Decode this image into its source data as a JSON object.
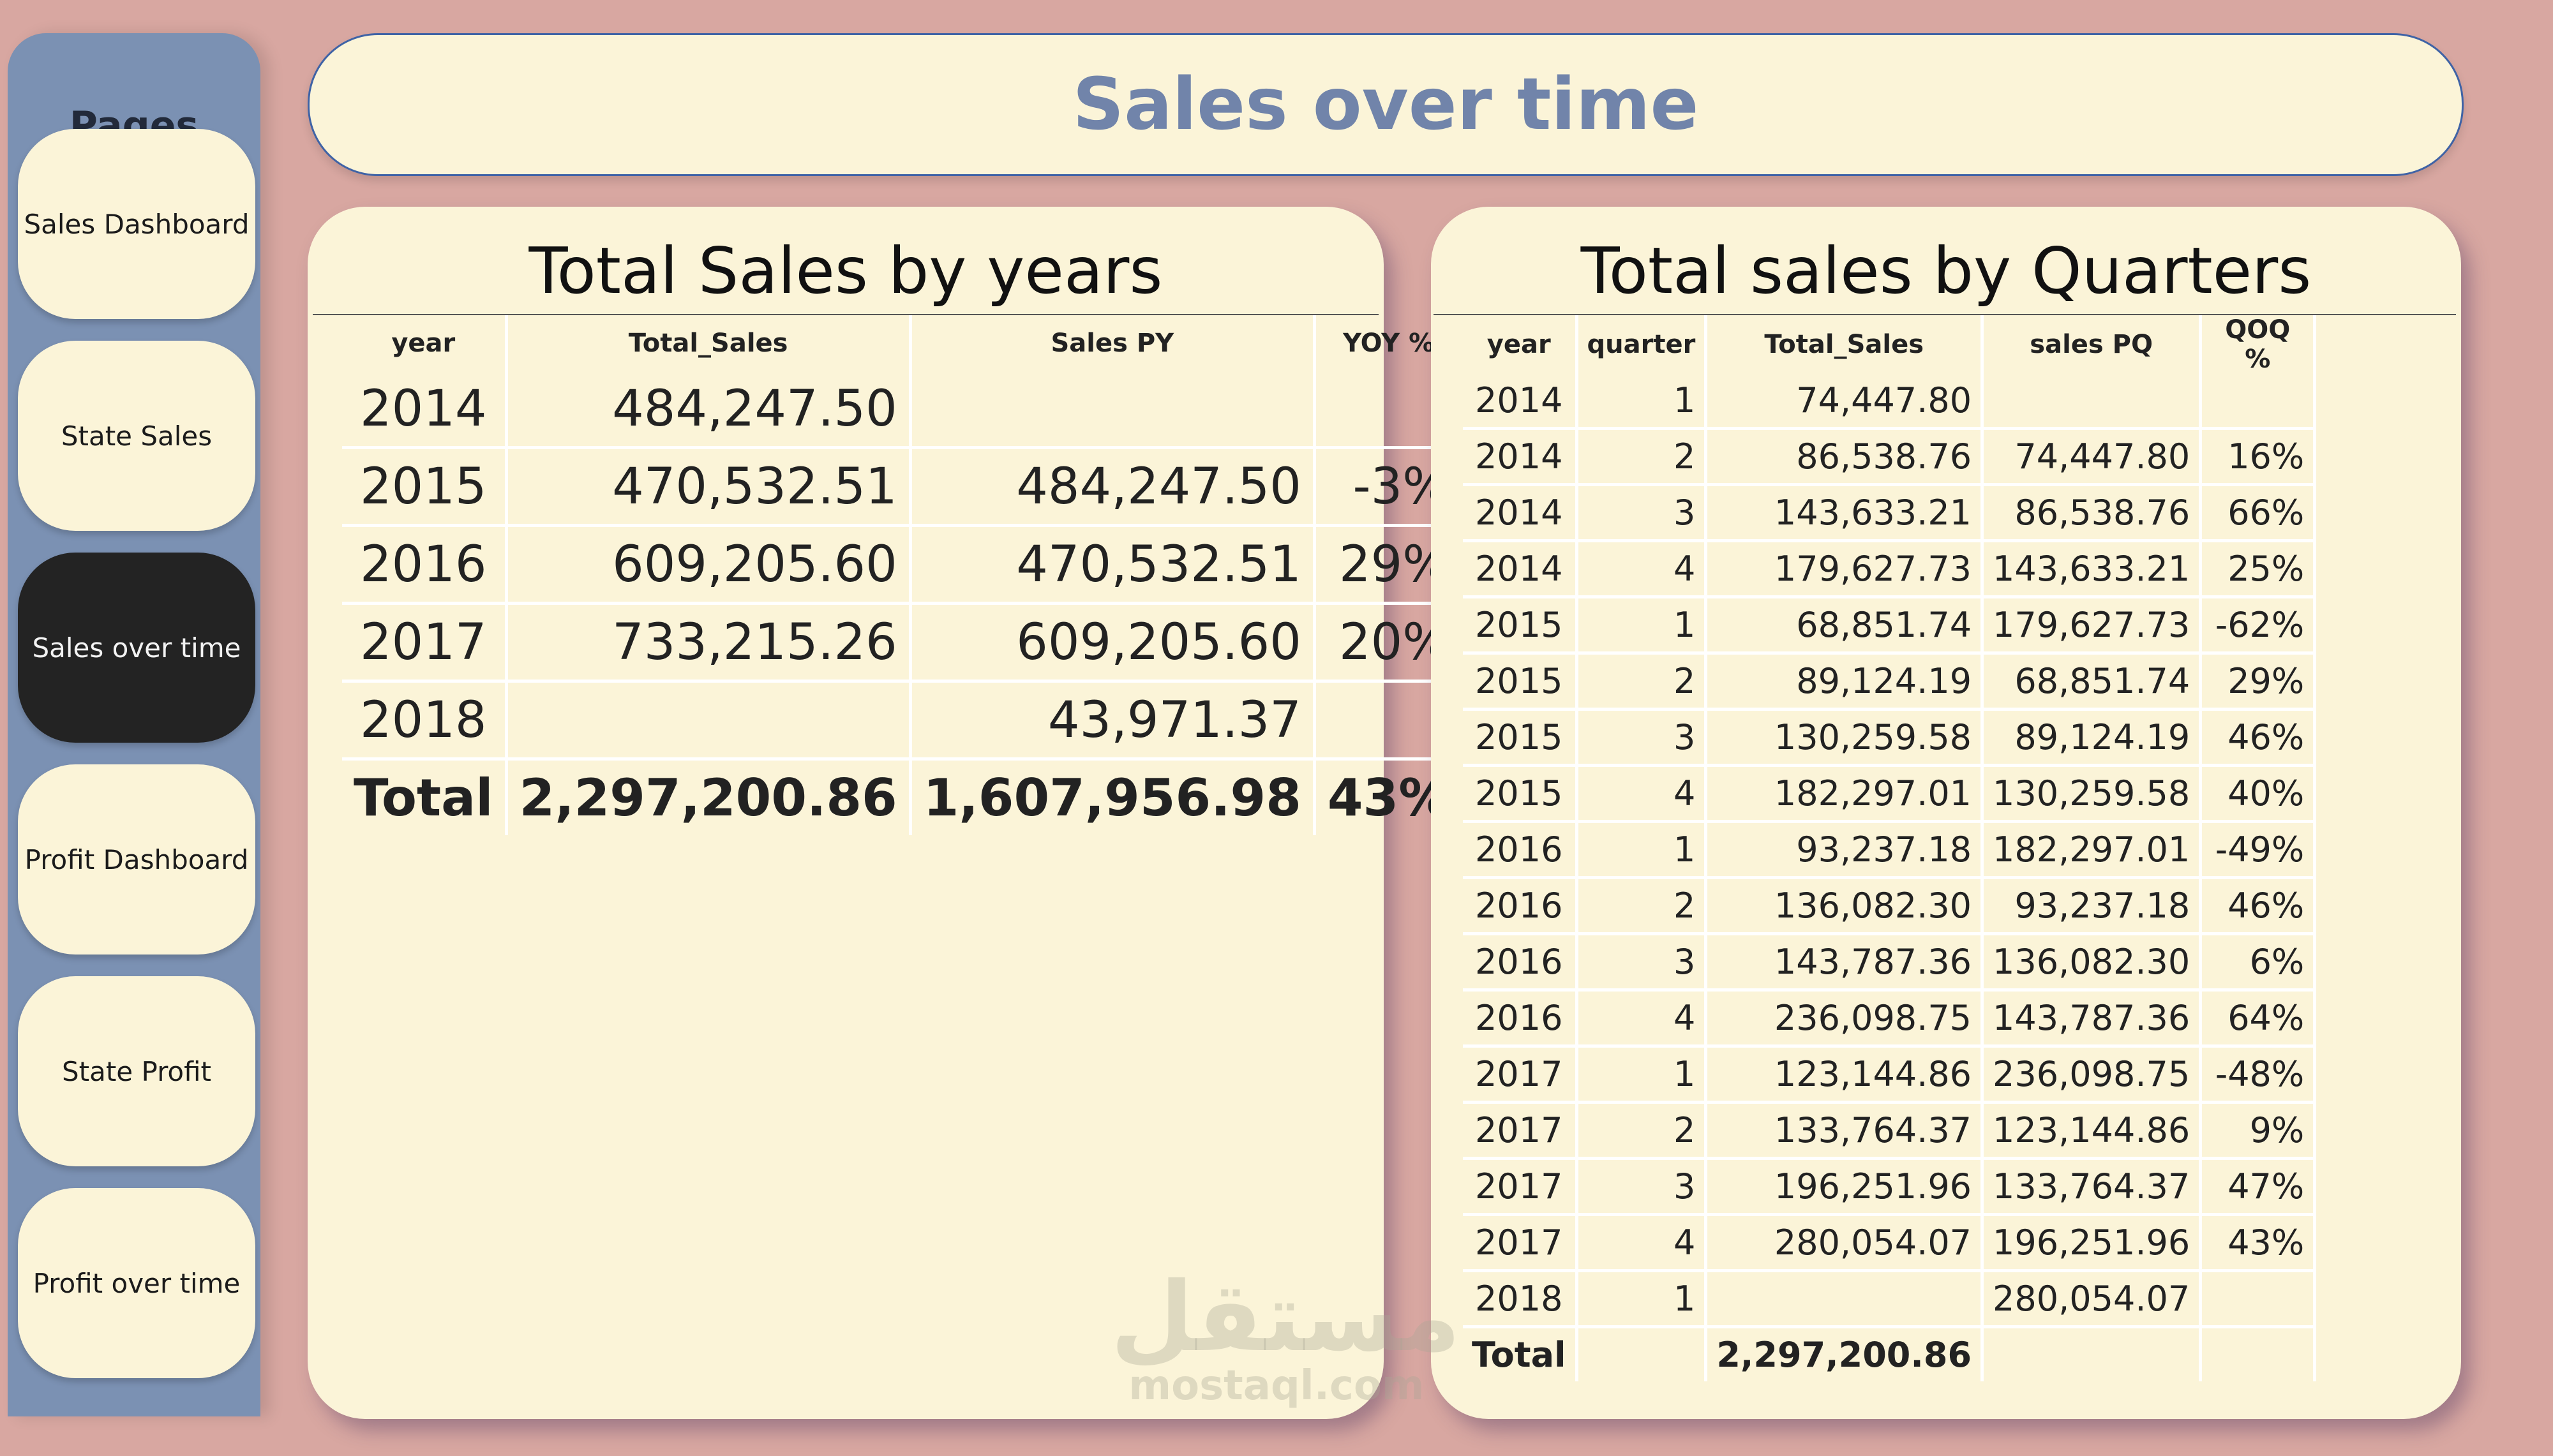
{
  "sidebar": {
    "title": "Pages",
    "items": [
      {
        "label": "Sales Dashboard",
        "active": false
      },
      {
        "label": "State Sales",
        "active": false
      },
      {
        "label": "Sales over time",
        "active": true
      },
      {
        "label": "Profit Dashboard",
        "active": false
      },
      {
        "label": "State Profit",
        "active": false
      },
      {
        "label": "Profit over time",
        "active": false
      }
    ]
  },
  "header": {
    "title": "Sales over time"
  },
  "years_table": {
    "title": "Total Sales by years",
    "columns": [
      "year",
      "Total_Sales",
      "Sales PY",
      "YOY %"
    ],
    "rows": [
      [
        "2014",
        "484,247.50",
        "",
        ""
      ],
      [
        "2015",
        "470,532.51",
        "484,247.50",
        "-3%"
      ],
      [
        "2016",
        "609,205.60",
        "470,532.51",
        "29%"
      ],
      [
        "2017",
        "733,215.26",
        "609,205.60",
        "20%"
      ],
      [
        "2018",
        "",
        "43,971.37",
        ""
      ]
    ],
    "total": [
      "Total",
      "2,297,200.86",
      "1,607,956.98",
      "43%"
    ]
  },
  "quarters_table": {
    "title": "Total sales by Quarters",
    "columns": [
      "year",
      "quarter",
      "Total_Sales",
      "sales PQ",
      "QOQ %"
    ],
    "rows": [
      [
        "2014",
        "1",
        "74,447.80",
        "",
        ""
      ],
      [
        "2014",
        "2",
        "86,538.76",
        "74,447.80",
        "16%"
      ],
      [
        "2014",
        "3",
        "143,633.21",
        "86,538.76",
        "66%"
      ],
      [
        "2014",
        "4",
        "179,627.73",
        "143,633.21",
        "25%"
      ],
      [
        "2015",
        "1",
        "68,851.74",
        "179,627.73",
        "-62%"
      ],
      [
        "2015",
        "2",
        "89,124.19",
        "68,851.74",
        "29%"
      ],
      [
        "2015",
        "3",
        "130,259.58",
        "89,124.19",
        "46%"
      ],
      [
        "2015",
        "4",
        "182,297.01",
        "130,259.58",
        "40%"
      ],
      [
        "2016",
        "1",
        "93,237.18",
        "182,297.01",
        "-49%"
      ],
      [
        "2016",
        "2",
        "136,082.30",
        "93,237.18",
        "46%"
      ],
      [
        "2016",
        "3",
        "143,787.36",
        "136,082.30",
        "6%"
      ],
      [
        "2016",
        "4",
        "236,098.75",
        "143,787.36",
        "64%"
      ],
      [
        "2017",
        "1",
        "123,144.86",
        "236,098.75",
        "-48%"
      ],
      [
        "2017",
        "2",
        "133,764.37",
        "123,144.86",
        "9%"
      ],
      [
        "2017",
        "3",
        "196,251.96",
        "133,764.37",
        "47%"
      ],
      [
        "2017",
        "4",
        "280,054.07",
        "196,251.96",
        "43%"
      ],
      [
        "2018",
        "1",
        "",
        "280,054.07",
        ""
      ]
    ],
    "total": [
      "Total",
      "",
      "2,297,200.86",
      "",
      ""
    ]
  },
  "watermark": {
    "arabic": "مستقل",
    "latin": "mostaql.com"
  },
  "colors": {
    "background": "#d8a7a1",
    "sidebar": "#7b91b3",
    "panel": "#fbf4d8",
    "title_text": "#7184aa",
    "active_button": "#232323"
  }
}
